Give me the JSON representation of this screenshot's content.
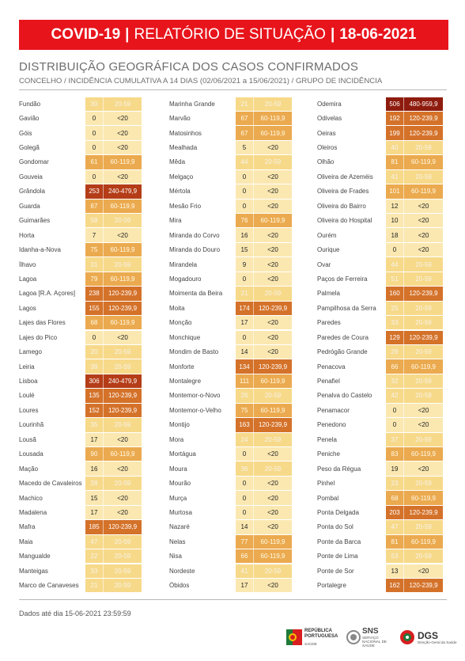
{
  "header": {
    "covid": "COVID-19",
    "sep1": "|",
    "report": "RELATÓRIO DE SITUAÇÃO",
    "sep2": "|",
    "date": "18-06-2021"
  },
  "title": "DISTRIBUIÇÃO GEOGRÁFICA DOS CASOS CONFIRMADOS",
  "subtitle": "CONCELHO / INCIDÊNCIA CUMULATIVA A 14 DIAS (02/06/2021 a 15/06/2021) / GRUPO DE INCIDÊNCIA",
  "group_colors": {
    "<20": "#fbe8b1",
    "20-59": "#f7d98a",
    "60-119,9": "#ebaa4f",
    "120-239,9": "#d4722a",
    "240-479,9": "#b43d18",
    "480-959,9": "#8e1c0e"
  },
  "columns": [
    [
      {
        "name": "Fundão",
        "count": "30",
        "group": "20-59"
      },
      {
        "name": "Gavião",
        "count": "0",
        "group": "<20"
      },
      {
        "name": "Góis",
        "count": "0",
        "group": "<20"
      },
      {
        "name": "Golegã",
        "count": "0",
        "group": "<20"
      },
      {
        "name": "Gondomar",
        "count": "61",
        "group": "60-119,9"
      },
      {
        "name": "Gouveia",
        "count": "0",
        "group": "<20"
      },
      {
        "name": "Grândola",
        "count": "253",
        "group": "240-479,9"
      },
      {
        "name": "Guarda",
        "count": "67",
        "group": "60-119,9"
      },
      {
        "name": "Guimarães",
        "count": "58",
        "group": "20-59"
      },
      {
        "name": "Horta",
        "count": "7",
        "group": "<20"
      },
      {
        "name": "Idanha-a-Nova",
        "count": "75",
        "group": "60-119,9"
      },
      {
        "name": "Ílhavo",
        "count": "31",
        "group": "20-59"
      },
      {
        "name": "Lagoa",
        "count": "79",
        "group": "60-119,9"
      },
      {
        "name": "Lagoa [R.A. Açores]",
        "count": "238",
        "group": "120-239,9"
      },
      {
        "name": "Lagos",
        "count": "155",
        "group": "120-239,9"
      },
      {
        "name": "Lajes das Flores",
        "count": "68",
        "group": "60-119,9"
      },
      {
        "name": "Lajes do Pico",
        "count": "0",
        "group": "<20"
      },
      {
        "name": "Lamego",
        "count": "20",
        "group": "20-59"
      },
      {
        "name": "Leiria",
        "count": "39",
        "group": "20-59"
      },
      {
        "name": "Lisboa",
        "count": "306",
        "group": "240-479,9"
      },
      {
        "name": "Loulé",
        "count": "135",
        "group": "120-239,9"
      },
      {
        "name": "Loures",
        "count": "152",
        "group": "120-239,9"
      },
      {
        "name": "Lourinhã",
        "count": "35",
        "group": "20-59"
      },
      {
        "name": "Lousã",
        "count": "17",
        "group": "<20"
      },
      {
        "name": "Lousada",
        "count": "90",
        "group": "60-119,9"
      },
      {
        "name": "Mação",
        "count": "16",
        "group": "<20"
      },
      {
        "name": "Macedo de Cavaleiros",
        "count": "28",
        "group": "20-59"
      },
      {
        "name": "Machico",
        "count": "15",
        "group": "<20"
      },
      {
        "name": "Madalena",
        "count": "17",
        "group": "<20"
      },
      {
        "name": "Mafra",
        "count": "185",
        "group": "120-239,9"
      },
      {
        "name": "Maia",
        "count": "47",
        "group": "20-59"
      },
      {
        "name": "Mangualde",
        "count": "22",
        "group": "20-59"
      },
      {
        "name": "Manteigas",
        "count": "33",
        "group": "20-59"
      },
      {
        "name": "Marco de Canaveses",
        "count": "21",
        "group": "20-59"
      }
    ],
    [
      {
        "name": "Marinha Grande",
        "count": "21",
        "group": "20-59"
      },
      {
        "name": "Marvão",
        "count": "67",
        "group": "60-119,9"
      },
      {
        "name": "Matosinhos",
        "count": "67",
        "group": "60-119,9"
      },
      {
        "name": "Mealhada",
        "count": "5",
        "group": "<20"
      },
      {
        "name": "Mêda",
        "count": "44",
        "group": "20-59"
      },
      {
        "name": "Melgaço",
        "count": "0",
        "group": "<20"
      },
      {
        "name": "Mértola",
        "count": "0",
        "group": "<20"
      },
      {
        "name": "Mesão Frio",
        "count": "0",
        "group": "<20"
      },
      {
        "name": "Mira",
        "count": "76",
        "group": "60-119,9"
      },
      {
        "name": "Miranda do Corvo",
        "count": "16",
        "group": "<20"
      },
      {
        "name": "Miranda do Douro",
        "count": "15",
        "group": "<20"
      },
      {
        "name": "Mirandela",
        "count": "9",
        "group": "<20"
      },
      {
        "name": "Mogadouro",
        "count": "0",
        "group": "<20"
      },
      {
        "name": "Moimenta da Beira",
        "count": "21",
        "group": "20-59"
      },
      {
        "name": "Moita",
        "count": "174",
        "group": "120-239,9"
      },
      {
        "name": "Monção",
        "count": "17",
        "group": "<20"
      },
      {
        "name": "Monchique",
        "count": "0",
        "group": "<20"
      },
      {
        "name": "Mondim de Basto",
        "count": "14",
        "group": "<20"
      },
      {
        "name": "Monforte",
        "count": "134",
        "group": "120-239,9"
      },
      {
        "name": "Montalegre",
        "count": "111",
        "group": "60-119,9"
      },
      {
        "name": "Montemor-o-Novo",
        "count": "26",
        "group": "20-59"
      },
      {
        "name": "Montemor-o-Velho",
        "count": "75",
        "group": "60-119,9"
      },
      {
        "name": "Montijo",
        "count": "163",
        "group": "120-239,9"
      },
      {
        "name": "Mora",
        "count": "24",
        "group": "20-59"
      },
      {
        "name": "Mortágua",
        "count": "0",
        "group": "<20"
      },
      {
        "name": "Moura",
        "count": "36",
        "group": "20-59"
      },
      {
        "name": "Mourão",
        "count": "0",
        "group": "<20"
      },
      {
        "name": "Murça",
        "count": "0",
        "group": "<20"
      },
      {
        "name": "Murtosa",
        "count": "0",
        "group": "<20"
      },
      {
        "name": "Nazaré",
        "count": "14",
        "group": "<20"
      },
      {
        "name": "Nelas",
        "count": "77",
        "group": "60-119,9"
      },
      {
        "name": "Nisa",
        "count": "66",
        "group": "60-119,9"
      },
      {
        "name": "Nordeste",
        "count": "41",
        "group": "20-59"
      },
      {
        "name": "Óbidos",
        "count": "17",
        "group": "<20"
      }
    ],
    [
      {
        "name": "Odemira",
        "count": "506",
        "group": "480-959,9"
      },
      {
        "name": "Odivelas",
        "count": "192",
        "group": "120-239,9"
      },
      {
        "name": "Oeiras",
        "count": "199",
        "group": "120-239,9"
      },
      {
        "name": "Oleiros",
        "count": "40",
        "group": "20-59"
      },
      {
        "name": "Olhão",
        "count": "81",
        "group": "60-119,9"
      },
      {
        "name": "Oliveira de Azeméis",
        "count": "41",
        "group": "20-59"
      },
      {
        "name": "Oliveira de Frades",
        "count": "101",
        "group": "60-119,9"
      },
      {
        "name": "Oliveira do Bairro",
        "count": "12",
        "group": "<20"
      },
      {
        "name": "Oliveira do Hospital",
        "count": "10",
        "group": "<20"
      },
      {
        "name": "Ourém",
        "count": "18",
        "group": "<20"
      },
      {
        "name": "Ourique",
        "count": "0",
        "group": "<20"
      },
      {
        "name": "Ovar",
        "count": "44",
        "group": "20-59"
      },
      {
        "name": "Paços de Ferreira",
        "count": "51",
        "group": "20-59"
      },
      {
        "name": "Palmela",
        "count": "160",
        "group": "120-239,9"
      },
      {
        "name": "Pampilhosa da Serra",
        "count": "25",
        "group": "20-59"
      },
      {
        "name": "Paredes",
        "count": "33",
        "group": "20-59"
      },
      {
        "name": "Paredes de Coura",
        "count": "129",
        "group": "120-239,9"
      },
      {
        "name": "Pedrógão Grande",
        "count": "29",
        "group": "20-59"
      },
      {
        "name": "Penacova",
        "count": "66",
        "group": "60-119,9"
      },
      {
        "name": "Penafiel",
        "count": "32",
        "group": "20-59"
      },
      {
        "name": "Penalva do Castelo",
        "count": "42",
        "group": "20-59"
      },
      {
        "name": "Penamacor",
        "count": "0",
        "group": "<20"
      },
      {
        "name": "Penedono",
        "count": "0",
        "group": "<20"
      },
      {
        "name": "Penela",
        "count": "37",
        "group": "20-59"
      },
      {
        "name": "Peniche",
        "count": "83",
        "group": "60-119,9"
      },
      {
        "name": "Peso da Régua",
        "count": "19",
        "group": "<20"
      },
      {
        "name": "Pinhel",
        "count": "23",
        "group": "20-59"
      },
      {
        "name": "Pombal",
        "count": "68",
        "group": "60-119,9"
      },
      {
        "name": "Ponta Delgada",
        "count": "203",
        "group": "120-239,9"
      },
      {
        "name": "Ponta do Sol",
        "count": "47",
        "group": "20-59"
      },
      {
        "name": "Ponte da Barca",
        "count": "81",
        "group": "60-119,9"
      },
      {
        "name": "Ponte de Lima",
        "count": "53",
        "group": "20-59"
      },
      {
        "name": "Ponte de Sor",
        "count": "13",
        "group": "<20"
      },
      {
        "name": "Portalegre",
        "count": "162",
        "group": "120-239,9"
      }
    ]
  ],
  "footer": {
    "note": "Dados até dia 15-06-2021 23:59:59",
    "rp_line1": "REPÚBLICA",
    "rp_line2": "PORTUGUESA",
    "rp_line3": "SAÚDE",
    "sns": "SNS",
    "sns_sub": "SERVIÇO NACIONAL DE SAÚDE",
    "dgs": "DGS",
    "dgs_sub": "Direção-Geral da Saúde"
  }
}
